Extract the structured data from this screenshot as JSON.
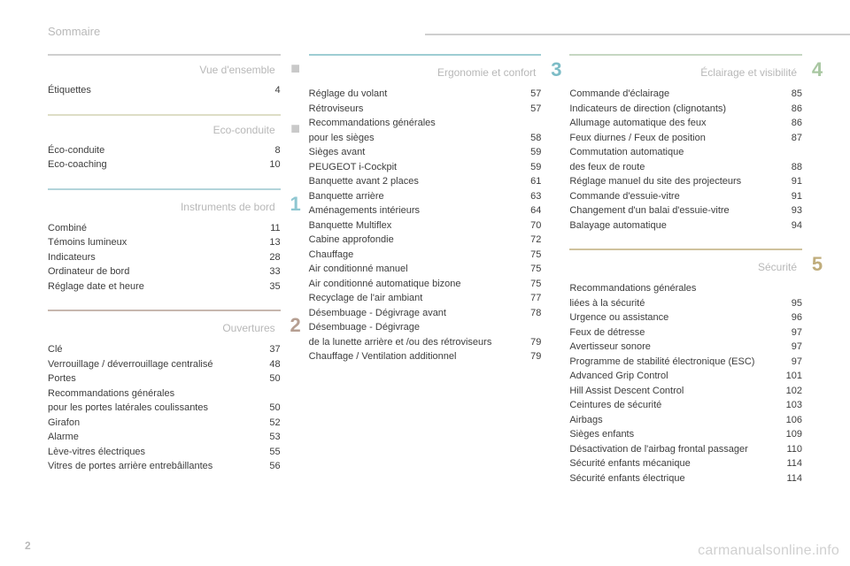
{
  "doc_title": "Sommaire",
  "page_number": "2",
  "watermark": "carmanualsonline.info",
  "columns": [
    {
      "sections": [
        {
          "title": "Vue d'ensemble",
          "rule_color": "#cfcfcf",
          "marker_type": "bullet",
          "marker_color": "#c9c9c9",
          "entries": [
            {
              "label": "Étiquettes",
              "page": "4"
            }
          ]
        },
        {
          "title": "Eco-conduite",
          "rule_color": "#dedec6",
          "marker_type": "bullet",
          "marker_color": "#c9c9c9",
          "entries": [
            {
              "label": "Éco-conduite",
              "page": "8"
            },
            {
              "label": "Eco-coaching",
              "page": "10"
            }
          ]
        },
        {
          "title": "Instruments de bord",
          "rule_color": "#b3d4da",
          "marker_type": "number",
          "marker": "1",
          "marker_color": "#8fc7d1",
          "entries": [
            {
              "label": "Combiné",
              "page": "11"
            },
            {
              "label": "Témoins lumineux",
              "page": "13"
            },
            {
              "label": "Indicateurs",
              "page": "28"
            },
            {
              "label": "Ordinateur de bord",
              "page": "33"
            },
            {
              "label": "Réglage date et heure",
              "page": "35"
            }
          ]
        },
        {
          "title": "Ouvertures",
          "rule_color": "#c7b7ae",
          "marker_type": "number",
          "marker": "2",
          "marker_color": "#b69f92",
          "entries": [
            {
              "label": "Clé",
              "page": "37"
            },
            {
              "label": "Verrouillage / déverrouillage centralisé",
              "page": "48"
            },
            {
              "label": "Portes",
              "page": "50"
            },
            {
              "label": "Recommandations générales\npour les portes latérales coulissantes",
              "page": "50"
            },
            {
              "label": "Girafon",
              "page": "52"
            },
            {
              "label": "Alarme",
              "page": "53"
            },
            {
              "label": "Lève-vitres électriques",
              "page": "55"
            },
            {
              "label": "Vitres de portes arrière entrebâillantes",
              "page": "56"
            }
          ]
        }
      ]
    },
    {
      "sections": [
        {
          "title": "Ergonomie et confort",
          "rule_color": "#9ecdd3",
          "marker_type": "number",
          "marker": "3",
          "marker_color": "#7cbcc6",
          "entries": [
            {
              "label": "Réglage du volant",
              "page": "57"
            },
            {
              "label": "Rétroviseurs",
              "page": "57"
            },
            {
              "label": "Recommandations générales\npour les sièges",
              "page": "58"
            },
            {
              "label": "Sièges avant",
              "page": "59"
            },
            {
              "label": "PEUGEOT i-Cockpit",
              "page": "59"
            },
            {
              "label": "Banquette avant 2 places",
              "page": "61"
            },
            {
              "label": "Banquette arrière",
              "page": "63"
            },
            {
              "label": "Aménagements intérieurs",
              "page": "64"
            },
            {
              "label": "Banquette Multiflex",
              "page": "70"
            },
            {
              "label": "Cabine approfondie",
              "page": "72"
            },
            {
              "label": "Chauffage",
              "page": "75"
            },
            {
              "label": "Air conditionné manuel",
              "page": "75"
            },
            {
              "label": "Air conditionné automatique bizone",
              "page": "75"
            },
            {
              "label": "Recyclage de l'air ambiant",
              "page": "77"
            },
            {
              "label": "Désembuage - Dégivrage avant",
              "page": "78"
            },
            {
              "label": "Désembuage - Dégivrage\nde la lunette arrière et /ou des rétroviseurs",
              "page": "79"
            },
            {
              "label": "Chauffage / Ventilation additionnel",
              "page": "79"
            }
          ]
        }
      ]
    },
    {
      "sections": [
        {
          "title": "Éclairage et visibilité",
          "rule_color": "#c6d7c2",
          "marker_type": "number",
          "marker": "4",
          "marker_color": "#a9c7a2",
          "entries": [
            {
              "label": "Commande d'éclairage",
              "page": "85"
            },
            {
              "label": "Indicateurs de direction (clignotants)",
              "page": "86"
            },
            {
              "label": "Allumage automatique des feux",
              "page": "86"
            },
            {
              "label": "Feux diurnes / Feux de position",
              "page": "87"
            },
            {
              "label": "Commutation automatique\ndes feux de route",
              "page": "88"
            },
            {
              "label": "Réglage manuel du site des projecteurs",
              "page": "91"
            },
            {
              "label": "Commande d'essuie-vitre",
              "page": "91"
            },
            {
              "label": "Changement d'un balai d'essuie-vitre",
              "page": "93"
            },
            {
              "label": "Balayage automatique",
              "page": "94"
            }
          ]
        },
        {
          "title": "Sécurité",
          "rule_color": "#cfc29d",
          "marker_type": "number",
          "marker": "5",
          "marker_color": "#c0ad7c",
          "entries": [
            {
              "label": "Recommandations générales\nliées à la sécurité",
              "page": "95"
            },
            {
              "label": "Urgence ou assistance",
              "page": "96"
            },
            {
              "label": "Feux de détresse",
              "page": "97"
            },
            {
              "label": "Avertisseur sonore",
              "page": "97"
            },
            {
              "label": "Programme de stabilité électronique (ESC)",
              "page": "97"
            },
            {
              "label": "Advanced Grip Control",
              "page": "101"
            },
            {
              "label": "Hill Assist Descent Control",
              "page": "102"
            },
            {
              "label": "Ceintures de sécurité",
              "page": "103"
            },
            {
              "label": "Airbags",
              "page": "106"
            },
            {
              "label": "Sièges enfants",
              "page": "109"
            },
            {
              "label": "Désactivation de l'airbag frontal passager",
              "page": "110"
            },
            {
              "label": "Sécurité enfants mécanique",
              "page": "114"
            },
            {
              "label": "Sécurité enfants électrique",
              "page": "114"
            }
          ]
        }
      ]
    }
  ]
}
